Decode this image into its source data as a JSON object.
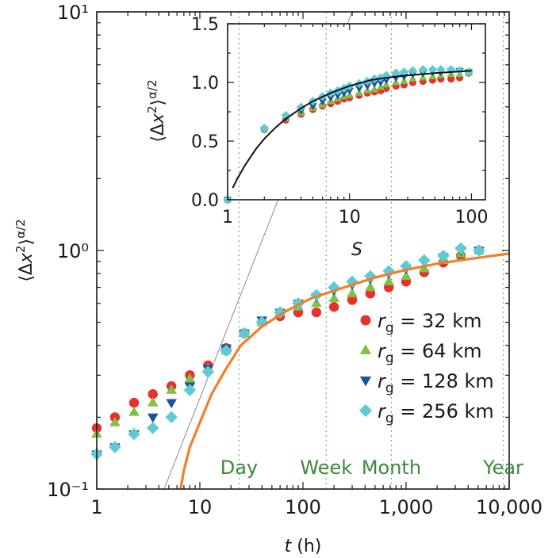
{
  "colors": {
    "rg32": "#e8302e",
    "rg64": "#7dc242",
    "rg128": "#1f4fa3",
    "rg256": "#5ecbd3",
    "fit_curve": "#f07f2a",
    "reference_line": "#8a8a8a",
    "time_markers": "#3a8a3a",
    "inset_curve": "#111111"
  },
  "chart_data": [
    {
      "type": "scatter",
      "x_scale": "log",
      "y_scale": "log",
      "xlim": [
        1,
        10000
      ],
      "ylim": [
        0.1,
        10
      ],
      "xlabel": "t (h)",
      "ylabel": "⟨Δx²⟩^(α/2)",
      "x_tick_labels": [
        "1",
        "10",
        "100",
        "1,000",
        "10,000"
      ],
      "x_tick_values": [
        1,
        10,
        100,
        1000,
        10000
      ],
      "y_tick_labels": [
        "10⁻¹",
        "10⁰",
        "10¹"
      ],
      "y_tick_values": [
        0.1,
        1,
        10
      ],
      "legend_position": "right",
      "series": [
        {
          "name": "rg = 32 km",
          "label_var": "r",
          "label_sub": "g",
          "label_rest": " = 32 km",
          "marker": "circle",
          "color_key": "rg32",
          "x": [
            1,
            1.5,
            2.3,
            3.5,
            5.3,
            8,
            12,
            18,
            27,
            40,
            60,
            90,
            135,
            200,
            300,
            450,
            680,
            1000,
            1500,
            2300,
            3400,
            5100
          ],
          "y": [
            0.18,
            0.2,
            0.23,
            0.25,
            0.27,
            0.3,
            0.33,
            0.39,
            0.45,
            0.5,
            0.53,
            0.55,
            0.55,
            0.58,
            0.62,
            0.66,
            0.7,
            0.74,
            0.81,
            0.89,
            0.95,
            1.0
          ]
        },
        {
          "name": "rg = 64 km",
          "label_var": "r",
          "label_sub": "g",
          "label_rest": " = 64 km",
          "marker": "triangle-up",
          "color_key": "rg64",
          "x": [
            1,
            1.5,
            2.3,
            3.5,
            5.3,
            8,
            12,
            18,
            27,
            40,
            60,
            90,
            135,
            200,
            300,
            450,
            680,
            1000,
            1500,
            2300,
            3400,
            5100
          ],
          "y": [
            0.17,
            0.19,
            0.21,
            0.23,
            0.26,
            0.29,
            0.32,
            0.38,
            0.45,
            0.5,
            0.55,
            0.58,
            0.6,
            0.63,
            0.66,
            0.7,
            0.74,
            0.78,
            0.84,
            0.91,
            0.97,
            1.0
          ]
        },
        {
          "name": "rg = 128 km",
          "label_var": "r",
          "label_sub": "g",
          "label_rest": " = 128 km",
          "marker": "triangle-down",
          "color_key": "rg128",
          "x": [
            1,
            1.5,
            2.3,
            3.5,
            5.3,
            8,
            12,
            18,
            27,
            40,
            60,
            90,
            135,
            200,
            300,
            450,
            680,
            1000,
            1500,
            2300,
            3400,
            5100
          ],
          "y": [
            0.14,
            0.15,
            0.17,
            0.2,
            0.23,
            0.27,
            0.32,
            0.39,
            0.45,
            0.51,
            0.55,
            0.6,
            0.64,
            0.68,
            0.72,
            0.76,
            0.8,
            0.84,
            0.89,
            0.94,
            1.0,
            1.0
          ]
        },
        {
          "name": "rg = 256 km",
          "label_var": "r",
          "label_sub": "g",
          "label_rest": " = 256 km",
          "marker": "diamond",
          "color_key": "rg256",
          "x": [
            1,
            1.5,
            2.3,
            3.5,
            5.3,
            8,
            12,
            18,
            27,
            40,
            60,
            90,
            135,
            200,
            300,
            450,
            680,
            1000,
            1500,
            2300,
            3400,
            5100
          ],
          "y": [
            0.14,
            0.15,
            0.17,
            0.18,
            0.2,
            0.26,
            0.31,
            0.38,
            0.45,
            0.5,
            0.55,
            0.6,
            0.65,
            0.7,
            0.74,
            0.78,
            0.82,
            0.86,
            0.91,
            0.95,
            1.02,
            1.0
          ]
        }
      ],
      "fit_curve": {
        "x": [
          6.5,
          7,
          8,
          10,
          13,
          18,
          25,
          40,
          70,
          120,
          250,
          500,
          1000,
          2000,
          4000,
          10000
        ],
        "y": [
          0.1,
          0.12,
          0.15,
          0.19,
          0.25,
          0.32,
          0.4,
          0.48,
          0.56,
          0.63,
          0.7,
          0.77,
          0.83,
          0.88,
          0.92,
          0.97
        ]
      },
      "reference_line": {
        "x": [
          4.5,
          300
        ],
        "y": [
          0.1,
          10
        ]
      },
      "time_markers": [
        {
          "label": "Day",
          "x": 24
        },
        {
          "label": "Week",
          "x": 168
        },
        {
          "label": "Month",
          "x": 720
        },
        {
          "label": "Year",
          "x": 8760
        }
      ]
    },
    {
      "type": "scatter",
      "x_scale": "log",
      "y_scale": "linear",
      "xlim": [
        1,
        130
      ],
      "ylim": [
        0,
        1.5
      ],
      "xlabel": "S",
      "ylabel": "⟨Δx²⟩^(α/2)",
      "x_tick_labels": [
        "1",
        "10",
        "100"
      ],
      "x_tick_values": [
        1,
        10,
        100
      ],
      "y_tick_labels": [
        "0.0",
        "0.5",
        "1.0",
        "1.5"
      ],
      "y_tick_values": [
        0,
        0.5,
        1.0,
        1.5
      ],
      "series": [
        {
          "name": "rg = 32 km",
          "marker": "circle",
          "color_key": "rg32",
          "x": [
            1,
            2,
            3,
            4,
            5,
            6,
            7,
            8,
            9,
            10,
            12,
            14,
            16,
            18,
            20,
            24,
            28,
            33,
            40,
            48,
            56,
            68,
            80,
            95
          ],
          "y": [
            0,
            0.6,
            0.68,
            0.73,
            0.77,
            0.8,
            0.82,
            0.84,
            0.86,
            0.87,
            0.89,
            0.91,
            0.92,
            0.93,
            0.95,
            0.97,
            0.98,
            1.0,
            1.01,
            1.02,
            1.03,
            1.03,
            1.04,
            1.08
          ]
        },
        {
          "name": "rg = 64 km",
          "marker": "triangle-up",
          "color_key": "rg64",
          "x": [
            1,
            2,
            3,
            4,
            5,
            6,
            7,
            8,
            9,
            10,
            12,
            14,
            16,
            18,
            20,
            24,
            28,
            33,
            40,
            48,
            56,
            68,
            80,
            95
          ],
          "y": [
            0,
            0.6,
            0.69,
            0.74,
            0.78,
            0.81,
            0.84,
            0.86,
            0.88,
            0.89,
            0.91,
            0.93,
            0.94,
            0.96,
            0.98,
            1.0,
            1.01,
            1.03,
            1.04,
            1.05,
            1.06,
            1.07,
            1.07,
            1.08
          ]
        },
        {
          "name": "rg = 128 km",
          "marker": "triangle-down",
          "color_key": "rg128",
          "x": [
            1,
            2,
            3,
            4,
            5,
            6,
            7,
            8,
            9,
            10,
            12,
            14,
            16,
            18,
            20,
            24,
            28,
            33,
            40,
            48,
            56,
            68,
            80,
            95
          ],
          "y": [
            0,
            0.6,
            0.7,
            0.76,
            0.8,
            0.84,
            0.87,
            0.89,
            0.91,
            0.93,
            0.95,
            0.97,
            0.99,
            1.0,
            1.02,
            1.04,
            1.05,
            1.07,
            1.08,
            1.09,
            1.09,
            1.1,
            1.1,
            1.09
          ]
        },
        {
          "name": "rg = 256 km",
          "marker": "diamond",
          "color_key": "rg256",
          "x": [
            1,
            2,
            3,
            4,
            5,
            6,
            7,
            8,
            9,
            10,
            12,
            14,
            16,
            18,
            20,
            24,
            28,
            33,
            40,
            48,
            56,
            68,
            80,
            95
          ],
          "y": [
            0,
            0.61,
            0.72,
            0.79,
            0.84,
            0.88,
            0.91,
            0.93,
            0.95,
            0.97,
            0.99,
            1.01,
            1.03,
            1.04,
            1.06,
            1.08,
            1.09,
            1.1,
            1.11,
            1.11,
            1.11,
            1.11,
            1.1,
            1.09
          ]
        }
      ],
      "fit_curve": {
        "x": [
          1.1,
          1.2,
          1.4,
          1.7,
          2,
          2.5,
          3,
          4,
          5,
          7,
          10,
          15,
          20,
          30,
          50,
          70,
          100
        ],
        "y": [
          0.1,
          0.18,
          0.3,
          0.43,
          0.52,
          0.62,
          0.69,
          0.78,
          0.84,
          0.91,
          0.97,
          1.02,
          1.04,
          1.06,
          1.08,
          1.09,
          1.1
        ]
      }
    }
  ]
}
